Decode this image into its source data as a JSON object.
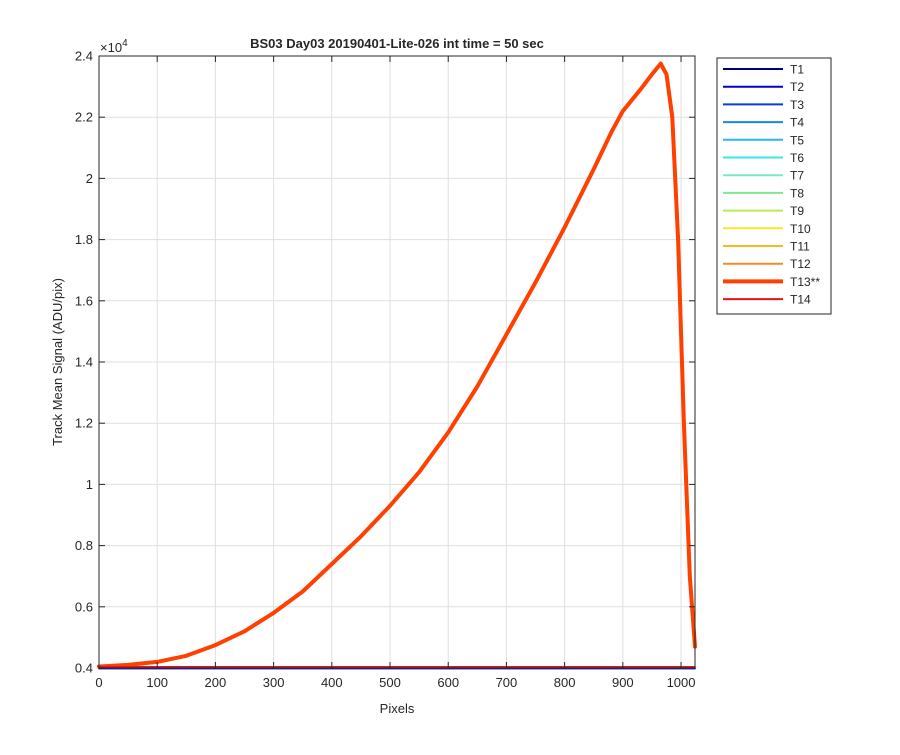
{
  "chart_data": {
    "type": "line",
    "title": "BS03 Day03 20190401-Lite-026 int time = 50 sec",
    "xlabel": "Pixels",
    "ylabel": "Track Mean Signal (ADU/pix)",
    "y_exponent_label": "×10",
    "y_exponent_power": "4",
    "xlim": [
      0,
      1024
    ],
    "ylim": [
      0.4,
      2.4
    ],
    "y_scale": 10000,
    "xticks": [
      0,
      100,
      200,
      300,
      400,
      500,
      600,
      700,
      800,
      900,
      1000
    ],
    "xtick_labels": [
      "0",
      "100",
      "200",
      "300",
      "400",
      "500",
      "600",
      "700",
      "800",
      "900",
      "1000"
    ],
    "yticks": [
      0.4,
      0.6,
      0.8,
      1.0,
      1.2,
      1.4,
      1.6,
      1.8,
      2.0,
      2.2,
      2.4
    ],
    "ytick_labels": [
      "0.4",
      "0.6",
      "0.8",
      "1",
      "1.2",
      "1.4",
      "1.6",
      "1.8",
      "2",
      "2.2",
      "2.4"
    ],
    "grid": true,
    "legend_position": "outside-right",
    "series": [
      {
        "name": "T1",
        "color": "#00007f",
        "width": "normal",
        "x": [
          0,
          1024
        ],
        "y": [
          0.398,
          0.398
        ]
      },
      {
        "name": "T2",
        "color": "#0000d4",
        "width": "normal",
        "x": [
          0,
          1024
        ],
        "y": [
          0.399,
          0.399
        ]
      },
      {
        "name": "T3",
        "color": "#0a3ecf",
        "width": "normal",
        "x": [
          0,
          1024
        ],
        "y": [
          0.4,
          0.4
        ]
      },
      {
        "name": "T4",
        "color": "#1a86e6",
        "width": "normal",
        "x": [
          0,
          1024
        ],
        "y": [
          0.401,
          0.401
        ]
      },
      {
        "name": "T5",
        "color": "#29b6f6",
        "width": "normal",
        "x": [
          0,
          1024
        ],
        "y": [
          0.401,
          0.401
        ]
      },
      {
        "name": "T6",
        "color": "#3ae6e6",
        "width": "normal",
        "x": [
          0,
          1024
        ],
        "y": [
          0.401,
          0.401
        ]
      },
      {
        "name": "T7",
        "color": "#78e8c8",
        "width": "normal",
        "x": [
          0,
          1024
        ],
        "y": [
          0.401,
          0.401
        ]
      },
      {
        "name": "T8",
        "color": "#7de88f",
        "width": "normal",
        "x": [
          0,
          1024
        ],
        "y": [
          0.401,
          0.401
        ]
      },
      {
        "name": "T9",
        "color": "#b4ec5a",
        "width": "normal",
        "x": [
          0,
          1024
        ],
        "y": [
          0.402,
          0.402
        ]
      },
      {
        "name": "T10",
        "color": "#f5e829",
        "width": "normal",
        "x": [
          0,
          1024
        ],
        "y": [
          0.402,
          0.402
        ]
      },
      {
        "name": "T11",
        "color": "#f7b91e",
        "width": "normal",
        "x": [
          0,
          1024
        ],
        "y": [
          0.402,
          0.402
        ]
      },
      {
        "name": "T12",
        "color": "#f58a28",
        "width": "normal",
        "x": [
          0,
          1024
        ],
        "y": [
          0.403,
          0.403
        ]
      },
      {
        "name": "T13**",
        "color": "#ff4000",
        "width": "thick",
        "x": [
          0,
          50,
          100,
          150,
          200,
          250,
          300,
          350,
          400,
          450,
          500,
          550,
          600,
          650,
          700,
          750,
          800,
          850,
          880,
          900,
          930,
          950,
          965,
          975,
          985,
          995,
          1005,
          1015,
          1024
        ],
        "y": [
          0.405,
          0.41,
          0.42,
          0.44,
          0.475,
          0.52,
          0.58,
          0.65,
          0.74,
          0.83,
          0.93,
          1.04,
          1.17,
          1.32,
          1.49,
          1.66,
          1.84,
          2.03,
          2.15,
          2.22,
          2.29,
          2.34,
          2.375,
          2.34,
          2.2,
          1.8,
          1.2,
          0.7,
          0.47
        ]
      },
      {
        "name": "T14",
        "color": "#e8121e",
        "width": "normal",
        "x": [
          0,
          1024
        ],
        "y": [
          0.404,
          0.404
        ]
      }
    ]
  }
}
